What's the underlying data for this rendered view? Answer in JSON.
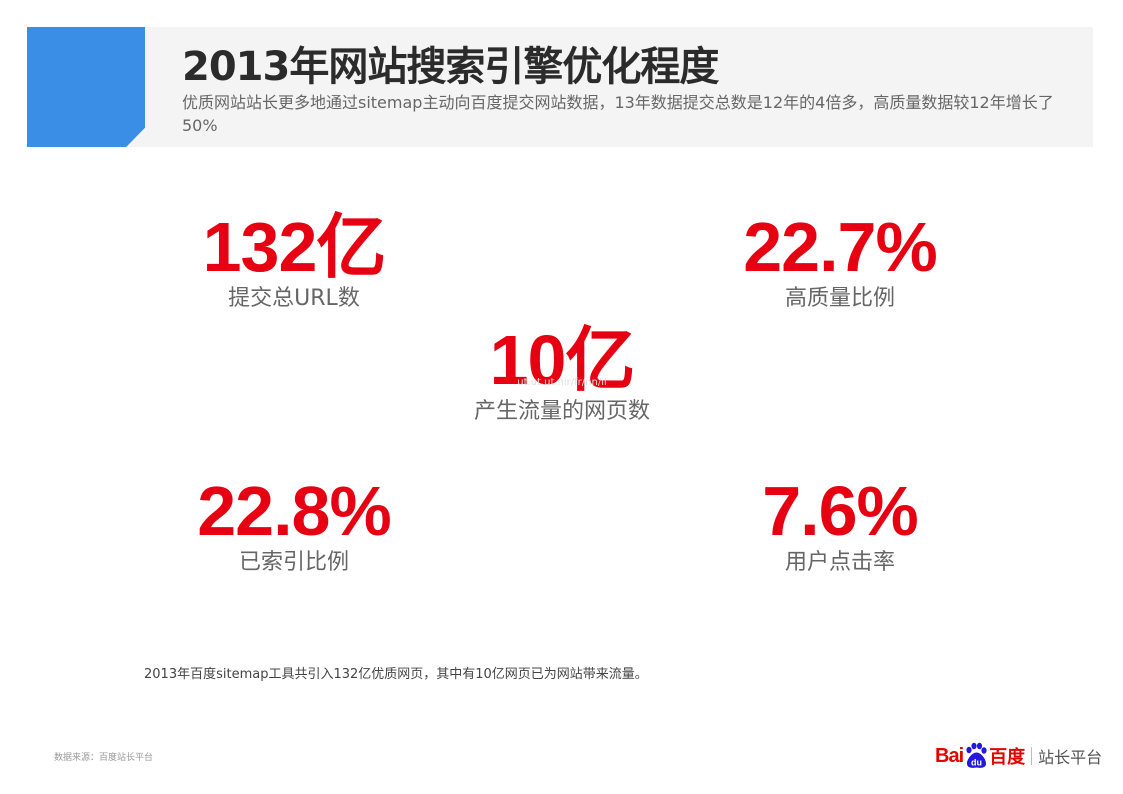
{
  "header": {
    "title": "2013年网站搜索引擎优化程度",
    "subtitle": "优质网站站长更多地通过sitemap主动向百度提交网站数据，13年数据提交总数是12年的4倍多，高质量数据较12年增长了50%"
  },
  "stats": [
    {
      "value": "132亿",
      "label": "提交总URL数"
    },
    {
      "value": "22.7%",
      "label": "高质量比例"
    },
    {
      "value": "10亿",
      "label": "产生流量的网页数",
      "watermark": "ut.ut.ut.nir/fr/nn/ii"
    },
    {
      "value": "22.8%",
      "label": "已索引比例"
    },
    {
      "value": "7.6%",
      "label": "用户点击率"
    }
  ],
  "footnote": "2013年百度sitemap工具共引入132亿优质网页，其中有10亿网页已为网站带来流量。",
  "source": "数据来源：百度站长平台",
  "brand": {
    "bai": "Bai",
    "du": "du",
    "baidu": "百度",
    "platform": "站长平台",
    "paw_icon": "baidu-paw-icon",
    "colors": {
      "red": "#e10602",
      "blue": "#2319dc"
    }
  },
  "colors": {
    "accent": "#3a8ee6",
    "stat_red": "#e60012",
    "header_bg": "#f4f4f4"
  }
}
